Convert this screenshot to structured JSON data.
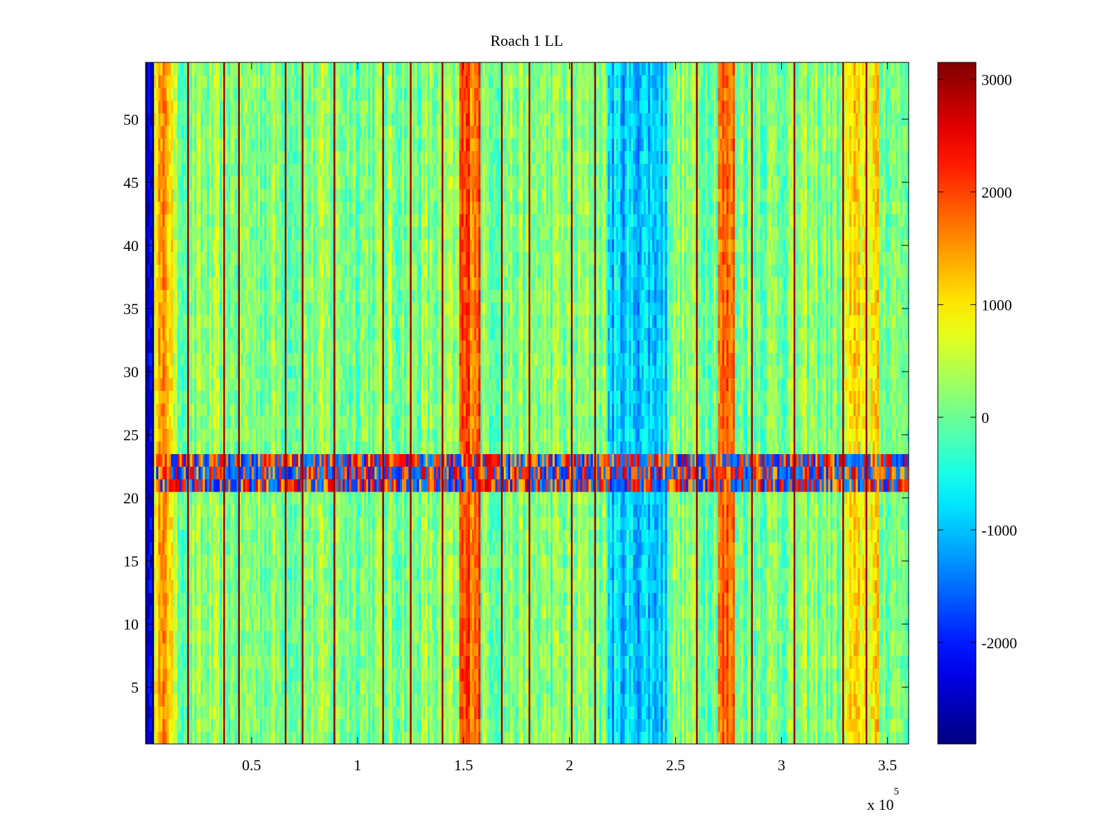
{
  "chart_data": {
    "type": "heatmap",
    "title": "Roach 1 LL",
    "xlabel": "",
    "ylabel": "",
    "x_exponent_label": "x 10",
    "x_exponent_power": "5",
    "xlim": [
      0,
      360000
    ],
    "ylim": [
      0.5,
      54.5
    ],
    "x_ticks": [
      50000,
      100000,
      150000,
      200000,
      250000,
      300000,
      350000
    ],
    "x_tick_labels": [
      "0.5",
      "1",
      "1.5",
      "2",
      "2.5",
      "3",
      "3.5"
    ],
    "y_ticks": [
      5,
      10,
      15,
      20,
      25,
      30,
      35,
      40,
      45,
      50
    ],
    "y_tick_labels": [
      "5",
      "10",
      "15",
      "20",
      "25",
      "30",
      "35",
      "40",
      "45",
      "50"
    ],
    "colorscale": "jet",
    "clim": [
      -2900,
      3150
    ],
    "colorbar_ticks": [
      3000,
      2000,
      1000,
      0,
      -1000,
      -2000
    ],
    "colorbar_tick_labels": [
      "3000",
      "2000",
      "1000",
      "0",
      "-1000",
      "-2000"
    ],
    "rows": 54,
    "noisy_band_rows": [
      21,
      23
    ],
    "column_bands": [
      {
        "x": [
          0,
          4000
        ],
        "value": -2600
      },
      {
        "x": [
          4000,
          13000
        ],
        "value": 1300
      },
      {
        "x": [
          148000,
          158000
        ],
        "value": 1900
      },
      {
        "x": [
          270000,
          278000
        ],
        "value": 1700
      },
      {
        "x": [
          218000,
          246000
        ],
        "value": -900
      },
      {
        "x": [
          330000,
          346000
        ],
        "value": 900
      }
    ],
    "stripe_x": [
      20000,
      37000,
      44000,
      66000,
      74000,
      89000,
      112000,
      125000,
      140000,
      168000,
      181000,
      201000,
      212000,
      260000,
      286000,
      306000,
      329000,
      340000
    ],
    "stripe_value": 3000
  }
}
